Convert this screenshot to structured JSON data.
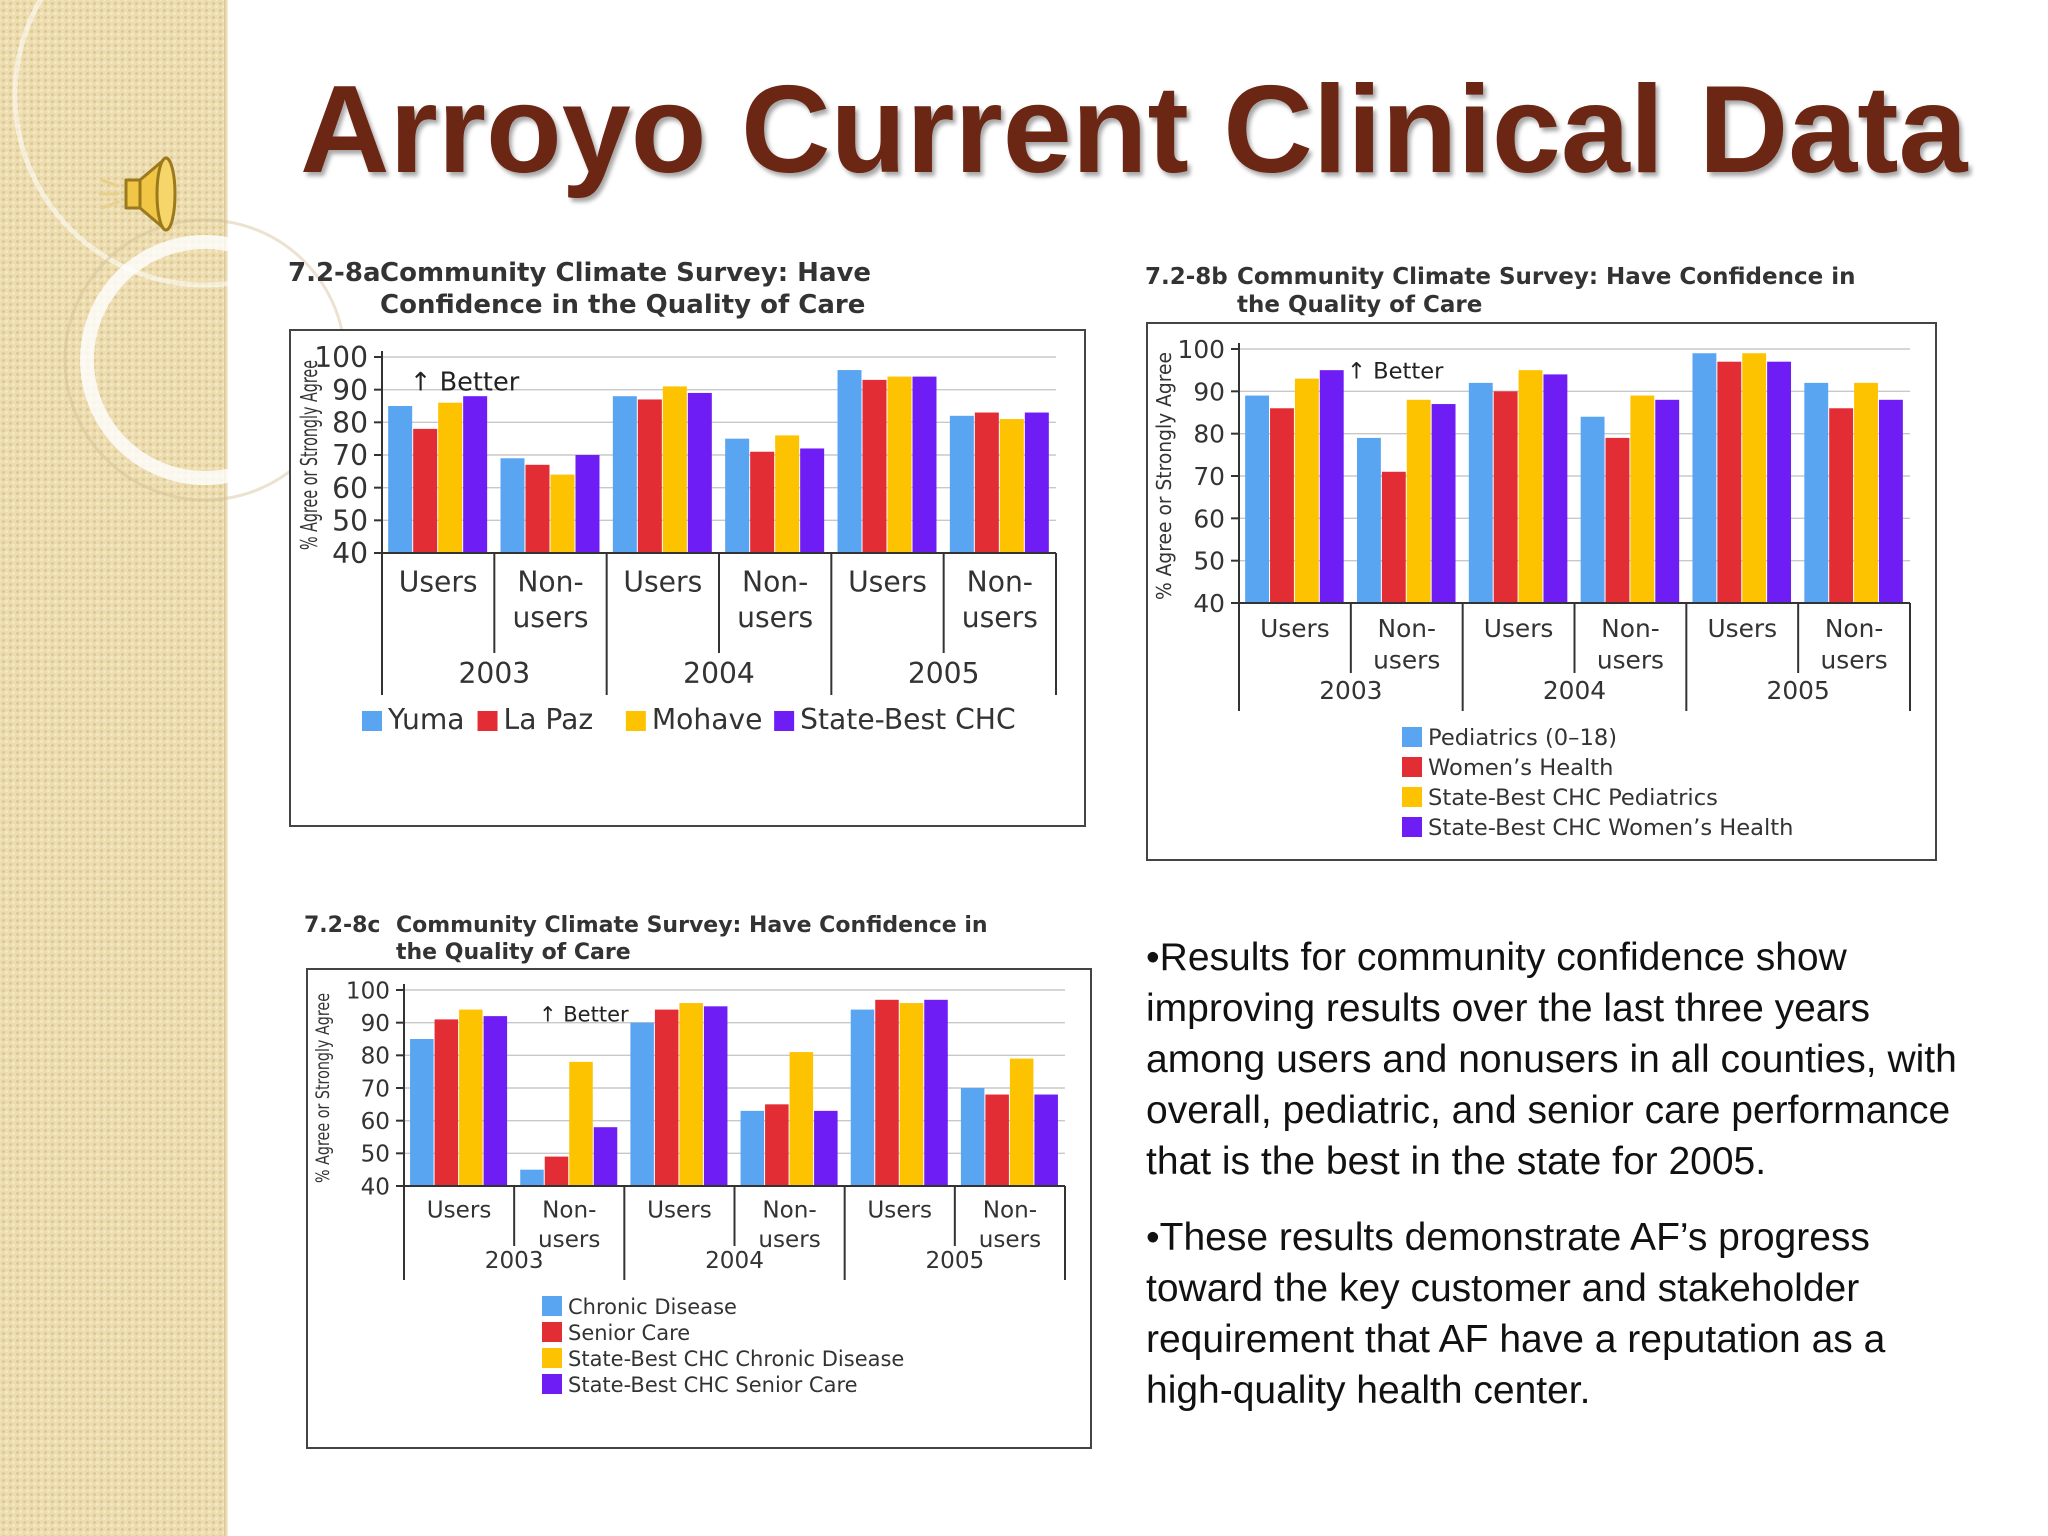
{
  "slide": {
    "title": "Arroyo Current Clinical Data",
    "bullets": [
      "•Results for community confidence show improving results over the last three years among users and nonusers in all counties, with overall, pediatric, and senior care performance that is the best in the state for 2005.",
      "•These results demonstrate AF’s progress toward the key customer and stakeholder requirement that AF have a reputation as a high-quality health center."
    ],
    "colors": {
      "title": "#6b2614",
      "sidebar": "#ecdcae"
    },
    "icons": {
      "speaker": "speaker-icon"
    }
  },
  "chart_data": [
    {
      "id": "7.2-8a",
      "type": "bar",
      "number": "7.2-8a",
      "title": "Community Climate Survey: Have Confidence in the Quality of Care",
      "ylabel": "% Agree or Strongly Agree",
      "ylim": [
        40,
        100
      ],
      "yticks": [
        40,
        50,
        60,
        70,
        80,
        90,
        100
      ],
      "annotation": "Better",
      "grid": true,
      "legend_position": "bottom",
      "categories": [
        "Users",
        "Non-users",
        "Users",
        "Non-users",
        "Users",
        "Non-users"
      ],
      "groups": [
        "2003",
        "2004",
        "2005"
      ],
      "series": [
        {
          "name": "Yuma",
          "color": "#5aa5f2",
          "values": [
            85,
            69,
            88,
            75,
            96,
            82
          ]
        },
        {
          "name": "La Paz",
          "color": "#e32d34",
          "values": [
            78,
            67,
            87,
            71,
            93,
            83
          ]
        },
        {
          "name": "Mohave",
          "color": "#fec300",
          "values": [
            86,
            64,
            91,
            76,
            94,
            81
          ]
        },
        {
          "name": "State-Best CHC",
          "color": "#6f1df5",
          "values": [
            88,
            70,
            89,
            72,
            94,
            83
          ]
        }
      ]
    },
    {
      "id": "7.2-8b",
      "type": "bar",
      "number": "7.2-8b",
      "title": "Community Climate Survey: Have Confidence in the Quality of Care",
      "ylabel": "% Agree or Strongly Agree",
      "ylim": [
        40,
        100
      ],
      "yticks": [
        40,
        50,
        60,
        70,
        80,
        90,
        100
      ],
      "annotation": "Better",
      "grid": true,
      "legend_position": "bottom",
      "categories": [
        "Users",
        "Non-users",
        "Users",
        "Non-users",
        "Users",
        "Non-users"
      ],
      "groups": [
        "2003",
        "2004",
        "2005"
      ],
      "series": [
        {
          "name": "Pediatrics (0–18)",
          "color": "#5aa5f2",
          "values": [
            89,
            79,
            92,
            84,
            99,
            92
          ]
        },
        {
          "name": "Women’s Health",
          "color": "#e32d34",
          "values": [
            86,
            71,
            90,
            79,
            97,
            86
          ]
        },
        {
          "name": "State-Best CHC Pediatrics",
          "color": "#fec300",
          "values": [
            93,
            88,
            95,
            89,
            99,
            92
          ]
        },
        {
          "name": "State-Best CHC Women’s Health",
          "color": "#6f1df5",
          "values": [
            95,
            87,
            94,
            88,
            97,
            88
          ]
        }
      ]
    },
    {
      "id": "7.2-8c",
      "type": "bar",
      "number": "7.2-8c",
      "title": "Community Climate Survey: Have Confidence in the Quality of Care",
      "ylabel": "% Agree or Strongly Agree",
      "ylim": [
        40,
        100
      ],
      "yticks": [
        40,
        50,
        60,
        70,
        80,
        90,
        100
      ],
      "annotation": "Better",
      "grid": true,
      "legend_position": "bottom",
      "categories": [
        "Users",
        "Non-users",
        "Users",
        "Non-users",
        "Users",
        "Non-users"
      ],
      "groups": [
        "2003",
        "2004",
        "2005"
      ],
      "series": [
        {
          "name": "Chronic Disease",
          "color": "#5aa5f2",
          "values": [
            85,
            45,
            90,
            63,
            94,
            70
          ]
        },
        {
          "name": "Senior Care",
          "color": "#e32d34",
          "values": [
            91,
            49,
            94,
            65,
            97,
            68
          ]
        },
        {
          "name": "State-Best CHC Chronic Disease",
          "color": "#fec300",
          "values": [
            94,
            78,
            96,
            81,
            96,
            79
          ]
        },
        {
          "name": "State-Best CHC Senior Care",
          "color": "#6f1df5",
          "values": [
            92,
            58,
            95,
            63,
            97,
            68
          ]
        }
      ]
    }
  ]
}
